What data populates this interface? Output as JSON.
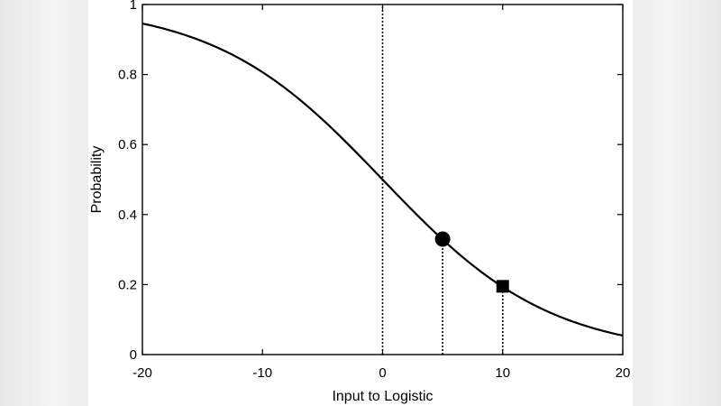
{
  "chart_data": {
    "type": "line",
    "title": "",
    "xlabel": "Input to Logistic",
    "ylabel": "Probability",
    "xlim": [
      -20,
      20
    ],
    "ylim": [
      0,
      1
    ],
    "x_ticks": [
      -20,
      -10,
      0,
      10,
      20
    ],
    "x_tick_labels": [
      "-20",
      "-10",
      "0",
      "10",
      "20"
    ],
    "y_ticks": [
      0,
      0.2,
      0.4,
      0.6,
      0.8,
      1
    ],
    "y_tick_labels": [
      "0",
      "0.2",
      "0.4",
      "0.6",
      "0.8",
      "1"
    ],
    "grid": false,
    "series": [
      {
        "curve": "logistic",
        "formula": "1/(1+exp(x/7))",
        "x": [
          -20,
          -15,
          -10,
          -5,
          0,
          5,
          10,
          15,
          20
        ],
        "y": [
          0.946,
          0.895,
          0.807,
          0.671,
          0.5,
          0.329,
          0.193,
          0.105,
          0.054
        ],
        "color": "#000000"
      }
    ],
    "markers": [
      {
        "shape": "circle",
        "x": 5,
        "y": 0.33
      },
      {
        "shape": "square",
        "x": 10,
        "y": 0.195
      }
    ],
    "reference_lines": [
      {
        "x": 0,
        "style": "dotted",
        "from_y": 0,
        "to_y": 1
      },
      {
        "x": 5,
        "style": "dotted",
        "from_y": 0,
        "to_y": 0.33
      },
      {
        "x": 10,
        "style": "dotted",
        "from_y": 0,
        "to_y": 0.195
      }
    ]
  }
}
